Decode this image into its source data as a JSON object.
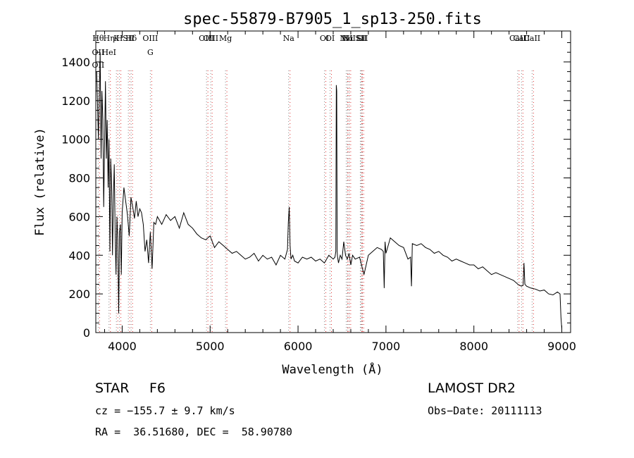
{
  "chart_data": {
    "type": "line",
    "title": "spec-55879-B7905_1_sp13-250.fits",
    "xlabel": "Wavelength (Å)",
    "ylabel": "Flux (relative)",
    "xlim": [
      3700,
      9100
    ],
    "ylim": [
      0,
      1560
    ],
    "x_ticks": [
      4000,
      5000,
      6000,
      7000,
      8000,
      9000
    ],
    "y_ticks": [
      0,
      200,
      400,
      600,
      800,
      1000,
      1200,
      1400
    ],
    "grid": false,
    "series": [
      {
        "line_color": "#000000",
        "x": [
          3710,
          3730,
          3750,
          3760,
          3770,
          3780,
          3790,
          3800,
          3810,
          3820,
          3830,
          3840,
          3850,
          3860,
          3870,
          3880,
          3890,
          3900,
          3910,
          3920,
          3930,
          3940,
          3950,
          3960,
          3970,
          3980,
          3990,
          4000,
          4020,
          4040,
          4060,
          4080,
          4100,
          4120,
          4140,
          4160,
          4180,
          4200,
          4220,
          4240,
          4260,
          4280,
          4300,
          4320,
          4340,
          4360,
          4380,
          4400,
          4450,
          4500,
          4550,
          4600,
          4650,
          4700,
          4750,
          4800,
          4850,
          4900,
          4950,
          5000,
          5050,
          5100,
          5150,
          5200,
          5250,
          5300,
          5350,
          5400,
          5450,
          5500,
          5550,
          5600,
          5650,
          5700,
          5750,
          5800,
          5850,
          5880,
          5890,
          5900,
          5910,
          5920,
          5940,
          5960,
          6000,
          6050,
          6100,
          6150,
          6200,
          6250,
          6300,
          6350,
          6400,
          6420,
          6430,
          6435,
          6440,
          6445,
          6450,
          6460,
          6480,
          6500,
          6520,
          6540,
          6560,
          6580,
          6600,
          6620,
          6650,
          6700,
          6750,
          6800,
          6850,
          6900,
          6950,
          6970,
          6980,
          6990,
          7000,
          7050,
          7100,
          7150,
          7200,
          7250,
          7280,
          7290,
          7300,
          7350,
          7400,
          7450,
          7500,
          7550,
          7600,
          7650,
          7700,
          7750,
          7800,
          7850,
          7900,
          7950,
          8000,
          8050,
          8100,
          8150,
          8200,
          8250,
          8300,
          8350,
          8400,
          8450,
          8500,
          8540,
          8560,
          8570,
          8580,
          8600,
          8650,
          8700,
          8750,
          8800,
          8850,
          8900,
          8950,
          8980,
          8990,
          9000
        ],
        "y": [
          1350,
          1000,
          1450,
          900,
          1250,
          1100,
          650,
          980,
          1300,
          900,
          1100,
          750,
          1000,
          420,
          900,
          760,
          400,
          700,
          870,
          500,
          300,
          600,
          480,
          100,
          520,
          560,
          300,
          620,
          750,
          680,
          610,
          500,
          700,
          650,
          590,
          680,
          600,
          640,
          620,
          560,
          420,
          480,
          360,
          520,
          330,
          570,
          560,
          600,
          560,
          610,
          580,
          600,
          540,
          620,
          560,
          540,
          510,
          490,
          480,
          500,
          440,
          470,
          450,
          430,
          410,
          420,
          400,
          380,
          390,
          410,
          370,
          400,
          380,
          390,
          350,
          400,
          380,
          430,
          570,
          650,
          450,
          380,
          400,
          370,
          360,
          390,
          380,
          390,
          370,
          380,
          360,
          400,
          380,
          390,
          420,
          1280,
          1250,
          420,
          390,
          360,
          400,
          380,
          470,
          400,
          380,
          410,
          350,
          400,
          380,
          390,
          300,
          400,
          420,
          440,
          430,
          420,
          230,
          470,
          410,
          490,
          470,
          450,
          440,
          380,
          390,
          240,
          460,
          450,
          460,
          440,
          430,
          410,
          420,
          400,
          390,
          370,
          380,
          370,
          360,
          350,
          350,
          330,
          340,
          320,
          300,
          310,
          300,
          290,
          280,
          270,
          250,
          240,
          245,
          360,
          250,
          240,
          230,
          225,
          215,
          220,
          200,
          195,
          210,
          200,
          80,
          20
        ]
      }
    ],
    "lines_blue": {
      "groups": [
        {
          "labels": [
            "Hθ",
            "OII",
            "OII"
          ],
          "wl": 3727
        },
        {
          "labels": [
            "Hη",
            "HeI"
          ],
          "wl": 3850
        },
        {
          "labels": [
            "K"
          ],
          "wl": 3934
        },
        {
          "labels": [
            "H"
          ],
          "wl": 3969
        },
        {
          "labels": [
            "SII"
          ],
          "wl": 4070
        },
        {
          "labels": [
            "Hδ"
          ],
          "wl": 4102
        },
        {
          "labels": [
            "OIII",
            "G"
          ],
          "wl": 4320
        },
        {
          "labels": [
            "OIII"
          ],
          "wl": 4959
        },
        {
          "labels": [
            "OIII"
          ],
          "wl": 5007
        },
        {
          "labels": [
            "Mg"
          ],
          "wl": 5175
        },
        {
          "labels": [
            "Na"
          ],
          "wl": 5893
        },
        {
          "labels": [
            "OI"
          ],
          "wl": 6300
        },
        {
          "labels": [
            "OI"
          ],
          "wl": 6364
        },
        {
          "labels": [
            "NII"
          ],
          "wl": 6548
        },
        {
          "labels": [
            "Hα"
          ],
          "wl": 6563
        },
        {
          "labels": [
            "NII"
          ],
          "wl": 6583
        },
        {
          "labels": [
            "Li"
          ],
          "wl": 6708
        },
        {
          "labels": [
            "SII"
          ],
          "wl": 6716
        },
        {
          "labels": [
            "SII"
          ],
          "wl": 6731
        },
        {
          "labels": [
            "CaII"
          ],
          "wl": 8498
        },
        {
          "labels": [
            "CaII"
          ],
          "wl": 8542
        },
        {
          "labels": [
            "CaII"
          ],
          "wl": 8662
        }
      ]
    }
  },
  "info": {
    "object_class": "STAR",
    "subclass": "F6",
    "survey": "LAMOST DR2",
    "cz": "cz = −155.7 ± 9.7 km/s",
    "obs_date": "Obs−Date: 20111113",
    "radec": "RA =  36.51680, DEC =  58.90780"
  },
  "colors": {
    "line_marker_gray": "#8c8c8c",
    "line_marker_red": "#e03030",
    "spectrum": "#000000"
  }
}
